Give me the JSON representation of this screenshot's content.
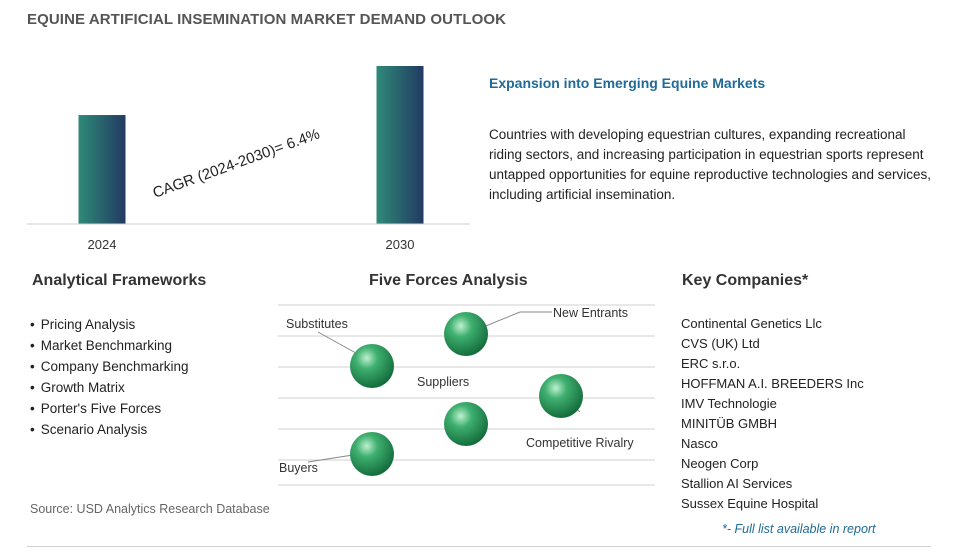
{
  "page": {
    "title": "EQUINE ARTIFICIAL INSEMINATION MARKET DEMAND OUTLOOK"
  },
  "chart_data": {
    "type": "bar",
    "categories": [
      "2024",
      "2030"
    ],
    "values": [
      1.0,
      1.45
    ],
    "annotation": "CAGR (2024-2030)=  6.4%",
    "bar_gradient": [
      "#2f8a78",
      "#223a62"
    ]
  },
  "highlight": {
    "title": "Expansion into Emerging Equine Markets",
    "text": "Countries with developing equestrian cultures, expanding recreational riding sectors, and increasing participation in equestrian sports represent untapped opportunities for equine reproductive technologies and services, including artificial insemination."
  },
  "frameworks": {
    "title": "Analytical Frameworks",
    "items": [
      "Pricing Analysis",
      "Market Benchmarking",
      "Company Benchmarking",
      "Growth Matrix",
      "Porter's Five Forces",
      "Scenario Analysis"
    ]
  },
  "five_forces": {
    "title": "Five Forces Analysis",
    "labels": {
      "substitutes": "Substitutes",
      "new_entrants": "New Entrants",
      "suppliers": "Suppliers",
      "competitive_rivalry": "Competitive Rivalry",
      "buyers": "Buyers"
    },
    "sphere_color": "#2e9a5e"
  },
  "companies": {
    "title": "Key Companies*",
    "items": [
      "Continental Genetics Llc",
      "CVS (UK) Ltd",
      "ERC s.r.o.",
      "HOFFMAN A.I. BREEDERS Inc",
      "IMV Technologie",
      "MINITÜB GMBH",
      "Nasco",
      "Neogen Corp",
      "Stallion AI Services",
      "Sussex Equine Hospital"
    ],
    "note": "*- Full list available in report"
  },
  "source": "Source: USD Analytics Research Database"
}
